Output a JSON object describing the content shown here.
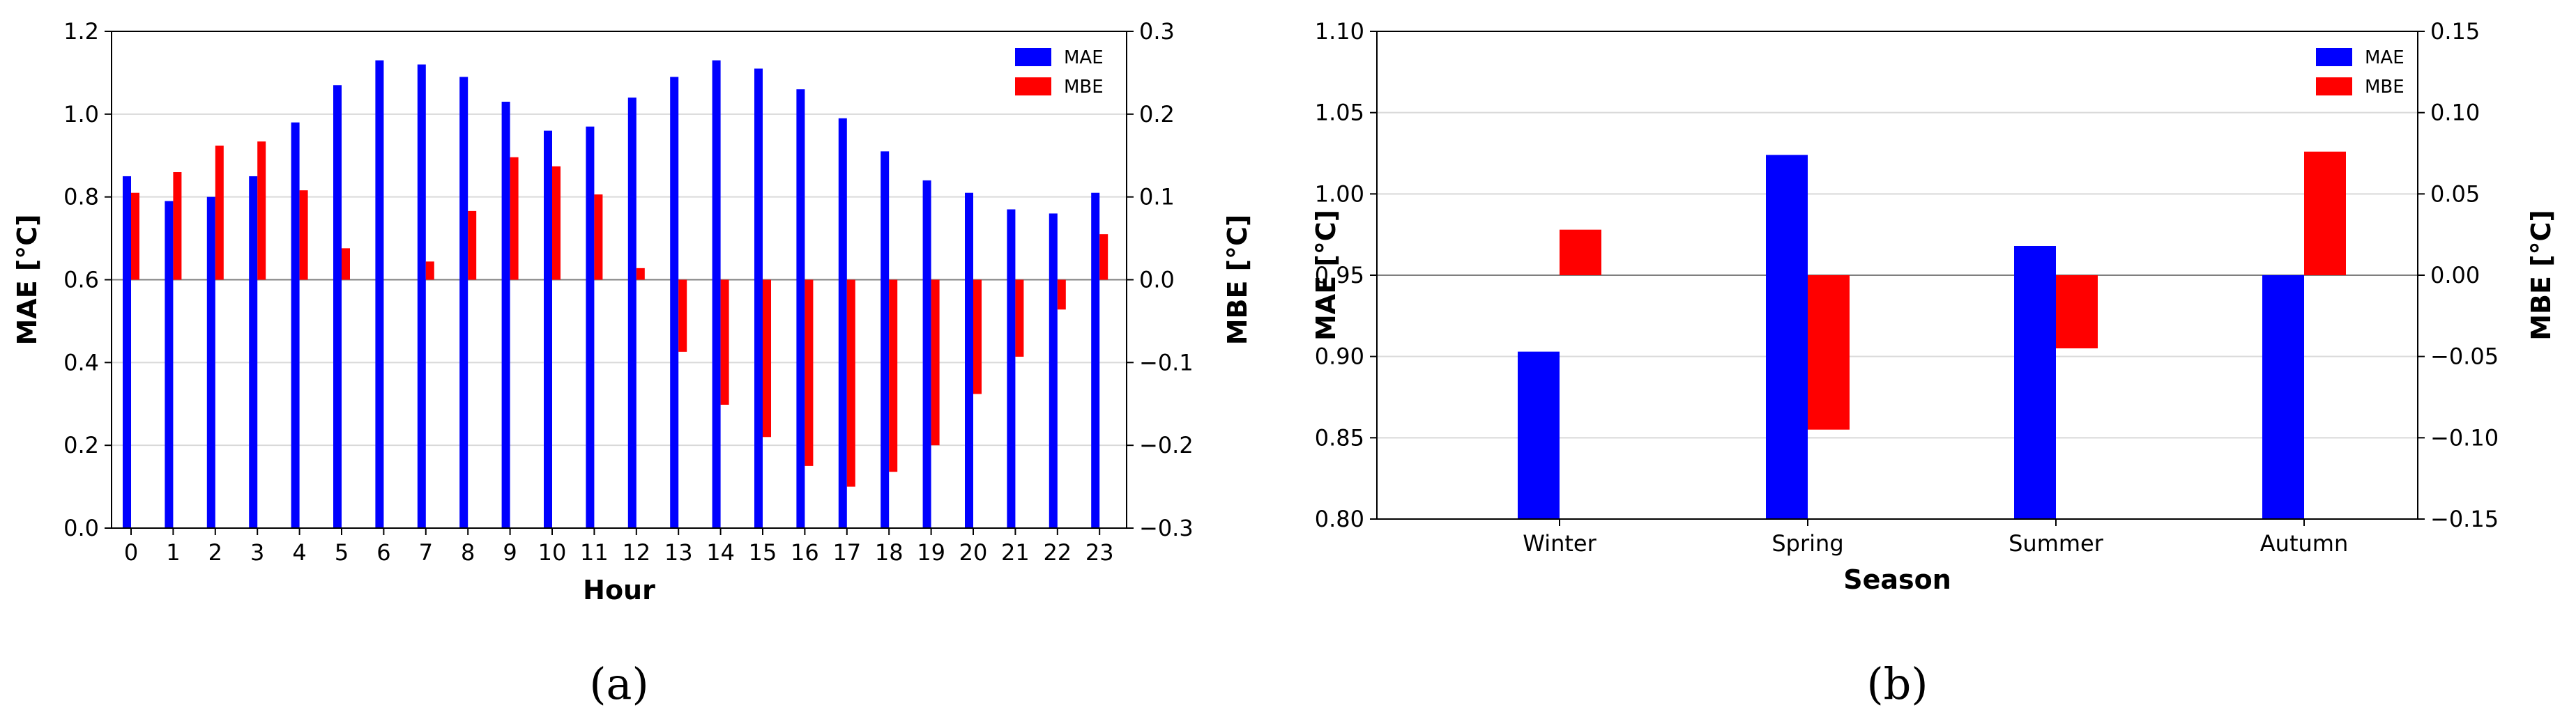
{
  "colors": {
    "mae": "#0000ff",
    "mbe": "#ff0000",
    "grid": "#d9d9d9",
    "zero": "#7f7f7f"
  },
  "chart_data": [
    {
      "type": "bar",
      "panel_label": "(a)",
      "xlabel": "Hour",
      "ylabel_left": "MAE [°C]",
      "ylabel_right": "MBE [°C]",
      "categories": [
        "0",
        "1",
        "2",
        "3",
        "4",
        "5",
        "6",
        "7",
        "8",
        "9",
        "10",
        "11",
        "12",
        "13",
        "14",
        "15",
        "16",
        "17",
        "18",
        "19",
        "20",
        "21",
        "22",
        "23"
      ],
      "ylim_left": [
        0.0,
        1.2
      ],
      "ylim_right": [
        -0.3,
        0.3
      ],
      "yticks_left": [
        "0.0",
        "0.2",
        "0.4",
        "0.6",
        "0.8",
        "1.0",
        "1.2"
      ],
      "yticks_right": [
        "−0.3",
        "−0.2",
        "−0.1",
        "0.0",
        "0.1",
        "0.2",
        "0.3"
      ],
      "legend": {
        "position": "top-right",
        "entries": [
          "MAE",
          "MBE"
        ]
      },
      "grid": true,
      "series": [
        {
          "name": "MAE",
          "axis": "left",
          "values": [
            0.85,
            0.79,
            0.8,
            0.85,
            0.98,
            1.07,
            1.13,
            1.12,
            1.09,
            1.03,
            0.96,
            0.97,
            1.04,
            1.09,
            1.13,
            1.11,
            1.06,
            0.99,
            0.91,
            0.84,
            0.81,
            0.77,
            0.76,
            0.81
          ]
        },
        {
          "name": "MBE",
          "axis": "right",
          "values": [
            0.105,
            0.13,
            0.162,
            0.167,
            0.108,
            0.038,
            0.0,
            0.022,
            0.083,
            0.148,
            0.137,
            0.103,
            0.014,
            -0.087,
            -0.151,
            -0.19,
            -0.225,
            -0.25,
            -0.232,
            -0.2,
            -0.138,
            -0.093,
            -0.036,
            0.055
          ]
        }
      ]
    },
    {
      "type": "bar",
      "panel_label": "(b)",
      "xlabel": "Season",
      "ylabel_left": "MAE [°C]",
      "ylabel_right": "MBE [°C]",
      "categories": [
        "Winter",
        "Spring",
        "Summer",
        "Autumn"
      ],
      "ylim_left": [
        0.8,
        1.1
      ],
      "ylim_right": [
        -0.15,
        0.15
      ],
      "yticks_left": [
        "0.80",
        "0.85",
        "0.90",
        "0.95",
        "1.00",
        "1.05",
        "1.10"
      ],
      "yticks_right": [
        "−0.15",
        "−0.10",
        "−0.05",
        "0.00",
        "0.05",
        "0.10",
        "0.15"
      ],
      "legend": {
        "position": "top-right",
        "entries": [
          "MAE",
          "MBE"
        ]
      },
      "grid": true,
      "series": [
        {
          "name": "MAE",
          "axis": "left",
          "values": [
            0.903,
            1.024,
            0.968,
            0.95
          ]
        },
        {
          "name": "MBE",
          "axis": "right",
          "values": [
            0.028,
            -0.095,
            -0.045,
            0.076
          ]
        }
      ]
    }
  ]
}
